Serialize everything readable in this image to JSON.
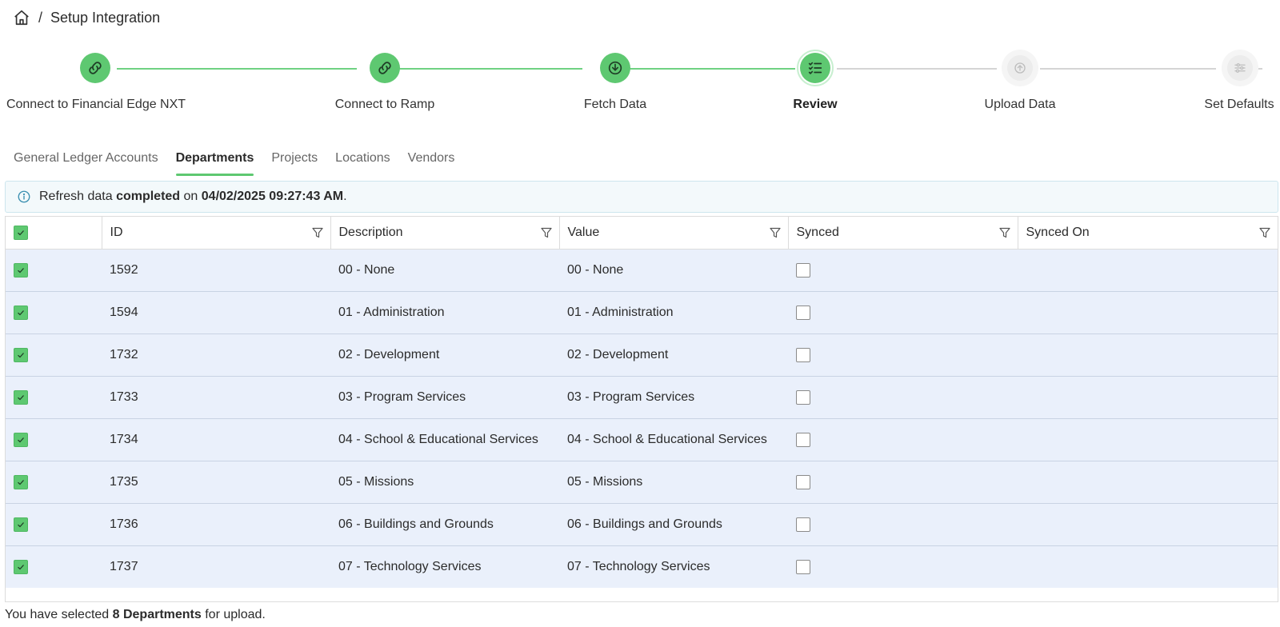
{
  "breadcrumb": {
    "separator": "/",
    "title": "Setup Integration"
  },
  "colors": {
    "accent": "#5ec871",
    "row_bg": "#eaf0fb",
    "info_bg": "#f3f9fb"
  },
  "steps": [
    {
      "label": "Connect to Financial Edge NXT",
      "icon": "link-icon",
      "state": "done"
    },
    {
      "label": "Connect to Ramp",
      "icon": "link-icon",
      "state": "done"
    },
    {
      "label": "Fetch Data",
      "icon": "download-icon",
      "state": "done"
    },
    {
      "label": "Review",
      "icon": "checklist-icon",
      "state": "active"
    },
    {
      "label": "Upload Data",
      "icon": "upload-icon",
      "state": "todo"
    },
    {
      "label": "Set Defaults",
      "icon": "sliders-icon",
      "state": "todo"
    }
  ],
  "tabs": [
    {
      "label": "General Ledger Accounts",
      "active": false
    },
    {
      "label": "Departments",
      "active": true
    },
    {
      "label": "Projects",
      "active": false
    },
    {
      "label": "Locations",
      "active": false
    },
    {
      "label": "Vendors",
      "active": false
    }
  ],
  "info": {
    "prefix": "Refresh data ",
    "status": "completed",
    "middle": " on ",
    "datetime": "04/02/2025 09:27:43 AM",
    "suffix": "."
  },
  "table": {
    "columns": [
      "ID",
      "Description",
      "Value",
      "Synced",
      "Synced On"
    ],
    "rows": [
      {
        "selected": true,
        "id": "1592",
        "description": "00 - None",
        "value": "00 - None",
        "synced": false,
        "synced_on": ""
      },
      {
        "selected": true,
        "id": "1594",
        "description": "01 - Administration",
        "value": "01 - Administration",
        "synced": false,
        "synced_on": ""
      },
      {
        "selected": true,
        "id": "1732",
        "description": "02 - Development",
        "value": "02 - Development",
        "synced": false,
        "synced_on": ""
      },
      {
        "selected": true,
        "id": "1733",
        "description": "03 - Program Services",
        "value": "03 - Program Services",
        "synced": false,
        "synced_on": ""
      },
      {
        "selected": true,
        "id": "1734",
        "description": "04 - School & Educational Services",
        "value": "04 - School & Educational Services",
        "synced": false,
        "synced_on": ""
      },
      {
        "selected": true,
        "id": "1735",
        "description": "05 - Missions",
        "value": "05 - Missions",
        "synced": false,
        "synced_on": ""
      },
      {
        "selected": true,
        "id": "1736",
        "description": "06 - Buildings and Grounds",
        "value": "06 - Buildings and Grounds",
        "synced": false,
        "synced_on": ""
      },
      {
        "selected": true,
        "id": "1737",
        "description": "07 - Technology Services",
        "value": "07 - Technology Services",
        "synced": false,
        "synced_on": ""
      }
    ]
  },
  "footer": {
    "prefix": "You have selected ",
    "count_label": "8 Departments",
    "suffix": " for upload."
  }
}
